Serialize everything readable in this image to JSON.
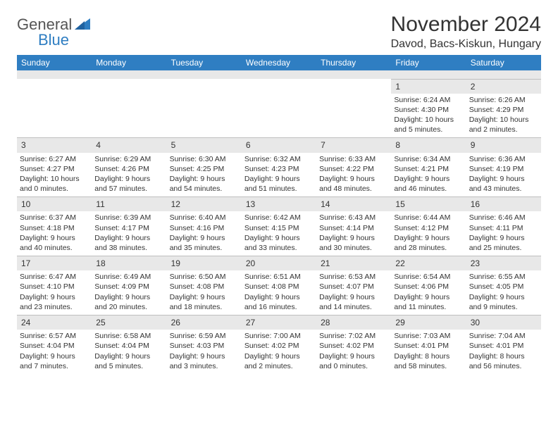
{
  "logo": {
    "text1": "General",
    "text2": "Blue"
  },
  "title": "November 2024",
  "location": "Davod, Bacs-Kiskun, Hungary",
  "colors": {
    "header_bg": "#2f7ec2",
    "header_fg": "#ffffff",
    "daynum_bg": "#e8e8e8",
    "text": "#333333",
    "border": "#bfbfbf",
    "logo_gray": "#555555",
    "logo_blue": "#2f7ec2"
  },
  "dow": [
    "Sunday",
    "Monday",
    "Tuesday",
    "Wednesday",
    "Thursday",
    "Friday",
    "Saturday"
  ],
  "weeks": [
    [
      null,
      null,
      null,
      null,
      null,
      {
        "n": "1",
        "sr": "Sunrise: 6:24 AM",
        "ss": "Sunset: 4:30 PM",
        "dl": "Daylight: 10 hours and 5 minutes."
      },
      {
        "n": "2",
        "sr": "Sunrise: 6:26 AM",
        "ss": "Sunset: 4:29 PM",
        "dl": "Daylight: 10 hours and 2 minutes."
      }
    ],
    [
      {
        "n": "3",
        "sr": "Sunrise: 6:27 AM",
        "ss": "Sunset: 4:27 PM",
        "dl": "Daylight: 10 hours and 0 minutes."
      },
      {
        "n": "4",
        "sr": "Sunrise: 6:29 AM",
        "ss": "Sunset: 4:26 PM",
        "dl": "Daylight: 9 hours and 57 minutes."
      },
      {
        "n": "5",
        "sr": "Sunrise: 6:30 AM",
        "ss": "Sunset: 4:25 PM",
        "dl": "Daylight: 9 hours and 54 minutes."
      },
      {
        "n": "6",
        "sr": "Sunrise: 6:32 AM",
        "ss": "Sunset: 4:23 PM",
        "dl": "Daylight: 9 hours and 51 minutes."
      },
      {
        "n": "7",
        "sr": "Sunrise: 6:33 AM",
        "ss": "Sunset: 4:22 PM",
        "dl": "Daylight: 9 hours and 48 minutes."
      },
      {
        "n": "8",
        "sr": "Sunrise: 6:34 AM",
        "ss": "Sunset: 4:21 PM",
        "dl": "Daylight: 9 hours and 46 minutes."
      },
      {
        "n": "9",
        "sr": "Sunrise: 6:36 AM",
        "ss": "Sunset: 4:19 PM",
        "dl": "Daylight: 9 hours and 43 minutes."
      }
    ],
    [
      {
        "n": "10",
        "sr": "Sunrise: 6:37 AM",
        "ss": "Sunset: 4:18 PM",
        "dl": "Daylight: 9 hours and 40 minutes."
      },
      {
        "n": "11",
        "sr": "Sunrise: 6:39 AM",
        "ss": "Sunset: 4:17 PM",
        "dl": "Daylight: 9 hours and 38 minutes."
      },
      {
        "n": "12",
        "sr": "Sunrise: 6:40 AM",
        "ss": "Sunset: 4:16 PM",
        "dl": "Daylight: 9 hours and 35 minutes."
      },
      {
        "n": "13",
        "sr": "Sunrise: 6:42 AM",
        "ss": "Sunset: 4:15 PM",
        "dl": "Daylight: 9 hours and 33 minutes."
      },
      {
        "n": "14",
        "sr": "Sunrise: 6:43 AM",
        "ss": "Sunset: 4:14 PM",
        "dl": "Daylight: 9 hours and 30 minutes."
      },
      {
        "n": "15",
        "sr": "Sunrise: 6:44 AM",
        "ss": "Sunset: 4:12 PM",
        "dl": "Daylight: 9 hours and 28 minutes."
      },
      {
        "n": "16",
        "sr": "Sunrise: 6:46 AM",
        "ss": "Sunset: 4:11 PM",
        "dl": "Daylight: 9 hours and 25 minutes."
      }
    ],
    [
      {
        "n": "17",
        "sr": "Sunrise: 6:47 AM",
        "ss": "Sunset: 4:10 PM",
        "dl": "Daylight: 9 hours and 23 minutes."
      },
      {
        "n": "18",
        "sr": "Sunrise: 6:49 AM",
        "ss": "Sunset: 4:09 PM",
        "dl": "Daylight: 9 hours and 20 minutes."
      },
      {
        "n": "19",
        "sr": "Sunrise: 6:50 AM",
        "ss": "Sunset: 4:08 PM",
        "dl": "Daylight: 9 hours and 18 minutes."
      },
      {
        "n": "20",
        "sr": "Sunrise: 6:51 AM",
        "ss": "Sunset: 4:08 PM",
        "dl": "Daylight: 9 hours and 16 minutes."
      },
      {
        "n": "21",
        "sr": "Sunrise: 6:53 AM",
        "ss": "Sunset: 4:07 PM",
        "dl": "Daylight: 9 hours and 14 minutes."
      },
      {
        "n": "22",
        "sr": "Sunrise: 6:54 AM",
        "ss": "Sunset: 4:06 PM",
        "dl": "Daylight: 9 hours and 11 minutes."
      },
      {
        "n": "23",
        "sr": "Sunrise: 6:55 AM",
        "ss": "Sunset: 4:05 PM",
        "dl": "Daylight: 9 hours and 9 minutes."
      }
    ],
    [
      {
        "n": "24",
        "sr": "Sunrise: 6:57 AM",
        "ss": "Sunset: 4:04 PM",
        "dl": "Daylight: 9 hours and 7 minutes."
      },
      {
        "n": "25",
        "sr": "Sunrise: 6:58 AM",
        "ss": "Sunset: 4:04 PM",
        "dl": "Daylight: 9 hours and 5 minutes."
      },
      {
        "n": "26",
        "sr": "Sunrise: 6:59 AM",
        "ss": "Sunset: 4:03 PM",
        "dl": "Daylight: 9 hours and 3 minutes."
      },
      {
        "n": "27",
        "sr": "Sunrise: 7:00 AM",
        "ss": "Sunset: 4:02 PM",
        "dl": "Daylight: 9 hours and 2 minutes."
      },
      {
        "n": "28",
        "sr": "Sunrise: 7:02 AM",
        "ss": "Sunset: 4:02 PM",
        "dl": "Daylight: 9 hours and 0 minutes."
      },
      {
        "n": "29",
        "sr": "Sunrise: 7:03 AM",
        "ss": "Sunset: 4:01 PM",
        "dl": "Daylight: 8 hours and 58 minutes."
      },
      {
        "n": "30",
        "sr": "Sunrise: 7:04 AM",
        "ss": "Sunset: 4:01 PM",
        "dl": "Daylight: 8 hours and 56 minutes."
      }
    ]
  ]
}
